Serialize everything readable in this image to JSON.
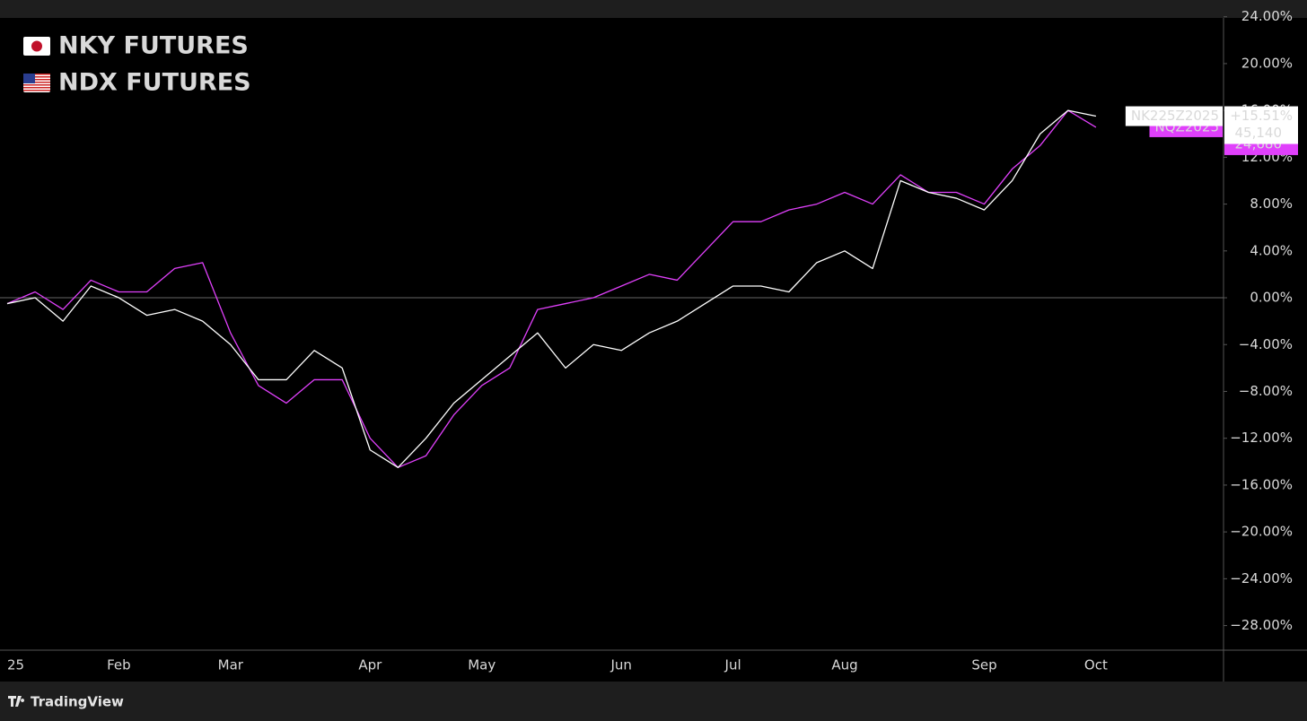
{
  "chart_data": {
    "type": "line",
    "categories": [
      "25",
      null,
      null,
      null,
      "Feb",
      null,
      null,
      null,
      "Mar",
      null,
      null,
      null,
      null,
      "Apr",
      null,
      null,
      null,
      "May",
      null,
      null,
      null,
      null,
      "Jun",
      null,
      null,
      null,
      "Jul",
      null,
      null,
      null,
      "Aug",
      null,
      null,
      null,
      null,
      "Sep",
      null,
      null,
      null,
      "Oct",
      null,
      null,
      null,
      null
    ],
    "series": [
      {
        "name": "NDX FUTURES",
        "symbol": "NQZ2025",
        "color": "#e040fb",
        "last_price": "24,680",
        "values": [
          -0.5,
          0.5,
          -1,
          1.5,
          0.5,
          0.5,
          2.5,
          3,
          -3,
          -7.5,
          -9,
          -7,
          -7,
          -12,
          -14.5,
          -13.5,
          -10,
          -7.5,
          -6,
          -1,
          -0.5,
          0,
          1,
          2,
          1.5,
          4,
          6.5,
          6.5,
          7.5,
          8,
          9,
          8,
          10.5,
          9,
          9,
          8,
          11,
          13,
          16,
          14.56,
          null,
          null,
          null,
          null
        ],
        "value_labels": [
          null,
          null,
          null,
          null,
          null,
          null,
          null,
          null,
          null,
          null,
          null,
          null,
          null,
          null,
          null,
          null,
          null,
          null,
          null,
          null,
          null,
          null,
          null,
          null,
          null,
          null,
          null,
          null,
          null,
          null,
          null,
          null,
          null,
          null,
          null,
          null,
          null,
          null,
          null,
          "+14.56%",
          null,
          null,
          null,
          null
        ]
      },
      {
        "name": "NKY FUTURES",
        "symbol": "NK225Z2025",
        "color": "#ffffff",
        "last_price": "45,140",
        "values": [
          -0.5,
          0,
          -2,
          1,
          0,
          -1.5,
          -1,
          -2,
          -4,
          -7,
          -7,
          -4.5,
          -6,
          -13,
          -14.5,
          -12,
          -9,
          -7,
          -5,
          -3,
          -6,
          -4,
          -4.5,
          -3,
          -2,
          -0.5,
          1,
          1,
          0.5,
          3,
          4,
          2.5,
          10,
          9,
          8.5,
          7.5,
          10,
          14,
          16,
          15.51,
          null,
          null,
          null,
          null
        ],
        "value_labels": [
          null,
          null,
          null,
          null,
          null,
          null,
          null,
          null,
          null,
          null,
          null,
          null,
          null,
          null,
          null,
          null,
          null,
          null,
          null,
          null,
          null,
          null,
          null,
          null,
          null,
          null,
          null,
          null,
          null,
          null,
          null,
          null,
          null,
          null,
          null,
          null,
          null,
          null,
          null,
          "+15.51%",
          null,
          null,
          null,
          null
        ]
      }
    ],
    "ylim": [
      -30.1,
      23.9
    ],
    "yticks": [
      {
        "value": -28,
        "label": "−28.00%"
      },
      {
        "value": -24,
        "label": "−24.00%"
      },
      {
        "value": -20,
        "label": "−20.00%"
      },
      {
        "value": -16,
        "label": "−16.00%"
      },
      {
        "value": -12,
        "label": "−12.00%"
      },
      {
        "value": -8,
        "label": "−8.00%"
      },
      {
        "value": -4,
        "label": "−4.00%"
      },
      {
        "value": 0,
        "label": "0.00%"
      },
      {
        "value": 4,
        "label": "4.00%"
      },
      {
        "value": 8,
        "label": "8.00%"
      },
      {
        "value": 12,
        "label": "12.00%"
      },
      {
        "value": 16,
        "label": "16.00%"
      },
      {
        "value": 20,
        "label": "20.00%"
      },
      {
        "value": 24,
        "label": "24.00%"
      }
    ],
    "grid": false,
    "legend_position": "top-left"
  },
  "footer": "TradingView"
}
